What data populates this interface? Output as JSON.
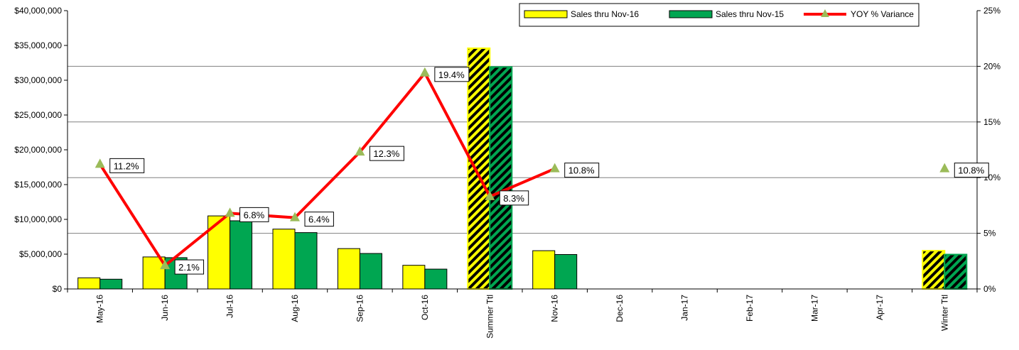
{
  "chart_data": {
    "type": "bar",
    "categories": [
      "May-16",
      "Jun-16",
      "Jul-16",
      "Aug-16",
      "Sep-16",
      "Oct-16",
      "Summer Ttl",
      "Nov-16",
      "Dec-16",
      "Jan-17",
      "Feb-17",
      "Mar-17",
      "Apr-17",
      "Winter Ttl"
    ],
    "totals": [
      "Summer Ttl",
      "Winter Ttl"
    ],
    "series": [
      {
        "name": "Sales thru Nov-16",
        "axis": "left",
        "kind": "bar",
        "color": "#FFFF00",
        "values": [
          1600000,
          4600000,
          10500000,
          8600000,
          5800000,
          3400000,
          34600000,
          5500000,
          0,
          0,
          0,
          0,
          0,
          5500000
        ]
      },
      {
        "name": "Sales thru Nov-15",
        "axis": "left",
        "kind": "bar",
        "color": "#00A651",
        "values": [
          1400000,
          4500000,
          9800000,
          8100000,
          5100000,
          2850000,
          31900000,
          4950000,
          0,
          0,
          0,
          0,
          0,
          4950000
        ]
      },
      {
        "name": "YOY % Variance",
        "axis": "right",
        "kind": "line",
        "color": "#FF0000",
        "marker_color": "#9BBB59",
        "values": [
          11.2,
          2.1,
          6.8,
          6.4,
          12.3,
          19.4,
          8.3,
          10.8,
          null,
          null,
          null,
          null,
          null,
          10.8
        ],
        "labels": [
          "11.2%",
          "2.1%",
          "6.8%",
          "6.4%",
          "12.3%",
          "19.4%",
          "8.3%",
          "10.8%",
          "",
          "",
          "",
          "",
          "",
          "10.8%"
        ]
      }
    ],
    "y_left": {
      "min": 0,
      "max": 40000000,
      "step": 5000000,
      "ticks": [
        "$0",
        "$5,000,000",
        "$10,000,000",
        "$15,000,000",
        "$20,000,000",
        "$25,000,000",
        "$30,000,000",
        "$35,000,000",
        "$40,000,000"
      ]
    },
    "y_right": {
      "min": 0,
      "max": 25,
      "step": 5,
      "ticks": [
        "0%",
        "5%",
        "10%",
        "15%",
        "20%",
        "25%"
      ]
    },
    "grid": "horizontal-right-axis",
    "legend": {
      "placement": "top-right",
      "entries": [
        "Sales thru Nov-16",
        "Sales thru Nov-15",
        "YOY % Variance"
      ]
    },
    "title": "",
    "xlabel": "",
    "ylabel": ""
  }
}
